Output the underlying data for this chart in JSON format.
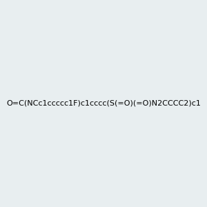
{
  "smiles": "O=C(NCc1ccccc1F)c1cccc(S(=O)(=O)N2CCCC2)c1",
  "image_size": 300,
  "background_color": "#e8eef0",
  "atom_colors": {
    "N": "#0000ff",
    "O": "#ff0000",
    "S": "#ccaa00",
    "F": "#ff00ff",
    "H": "#808080"
  }
}
